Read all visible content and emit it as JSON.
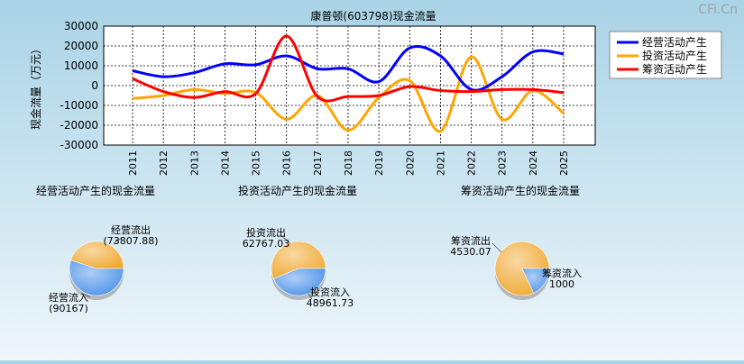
{
  "watermark": "CFi.Cn",
  "chart_data": [
    {
      "type": "line",
      "title": "康普顿(603798)现金流量",
      "ylabel": "现金流量（万元）",
      "x": [
        "2011",
        "2012",
        "2013",
        "2014",
        "2015",
        "2016",
        "2017",
        "2018",
        "2019",
        "2020",
        "2021",
        "2022",
        "2023",
        "2024",
        "2025"
      ],
      "ylim": [
        -30000,
        30000
      ],
      "yticks": [
        30000,
        20000,
        10000,
        0,
        -10000,
        -20000,
        -30000
      ],
      "grid": true,
      "legend_position": "top-right",
      "series": [
        {
          "name": "经营活动产生",
          "color": "#0000ff",
          "values": [
            7500,
            4500,
            6500,
            11000,
            10500,
            15000,
            8500,
            8500,
            2000,
            19000,
            15000,
            -2000,
            4500,
            17000,
            16000
          ]
        },
        {
          "name": "投资活动产生",
          "color": "#ffa500",
          "values": [
            -6500,
            -5000,
            -2000,
            -4000,
            -3500,
            -17000,
            -5000,
            -22500,
            -6000,
            2500,
            -23000,
            14500,
            -17000,
            -2500,
            -14000
          ]
        },
        {
          "name": "筹资活动产生",
          "color": "#ff0000",
          "values": [
            3500,
            -3000,
            -6000,
            -3000,
            -4000,
            25000,
            -5500,
            -5500,
            -5000,
            -500,
            -2500,
            -3000,
            -2000,
            -2000,
            -3500
          ]
        }
      ]
    },
    {
      "type": "pie",
      "title": "经营活动产生的现金流量",
      "slices": [
        {
          "label": "经营流出",
          "value_label": "(73807.88)",
          "value": 73807.88,
          "color": "#f0a830"
        },
        {
          "label": "经营流入",
          "value_label": "(90167)",
          "value": 90167,
          "color": "#4a90e8"
        }
      ]
    },
    {
      "type": "pie",
      "title": "投资活动产生的现金流量",
      "slices": [
        {
          "label": "投资流出",
          "value_label": "62767.03",
          "value": 62767.03,
          "color": "#f0a830"
        },
        {
          "label": "投资流入",
          "value_label": "48961.73",
          "value": 48961.73,
          "color": "#4a90e8"
        }
      ]
    },
    {
      "type": "pie",
      "title": "筹资活动产生的现金流量",
      "slices": [
        {
          "label": "筹资流出",
          "value_label": "4530.07",
          "value": 4530.07,
          "color": "#f0a830"
        },
        {
          "label": "筹资流入",
          "value_label": "1000",
          "value": 1000,
          "color": "#4a90e8"
        }
      ]
    }
  ]
}
